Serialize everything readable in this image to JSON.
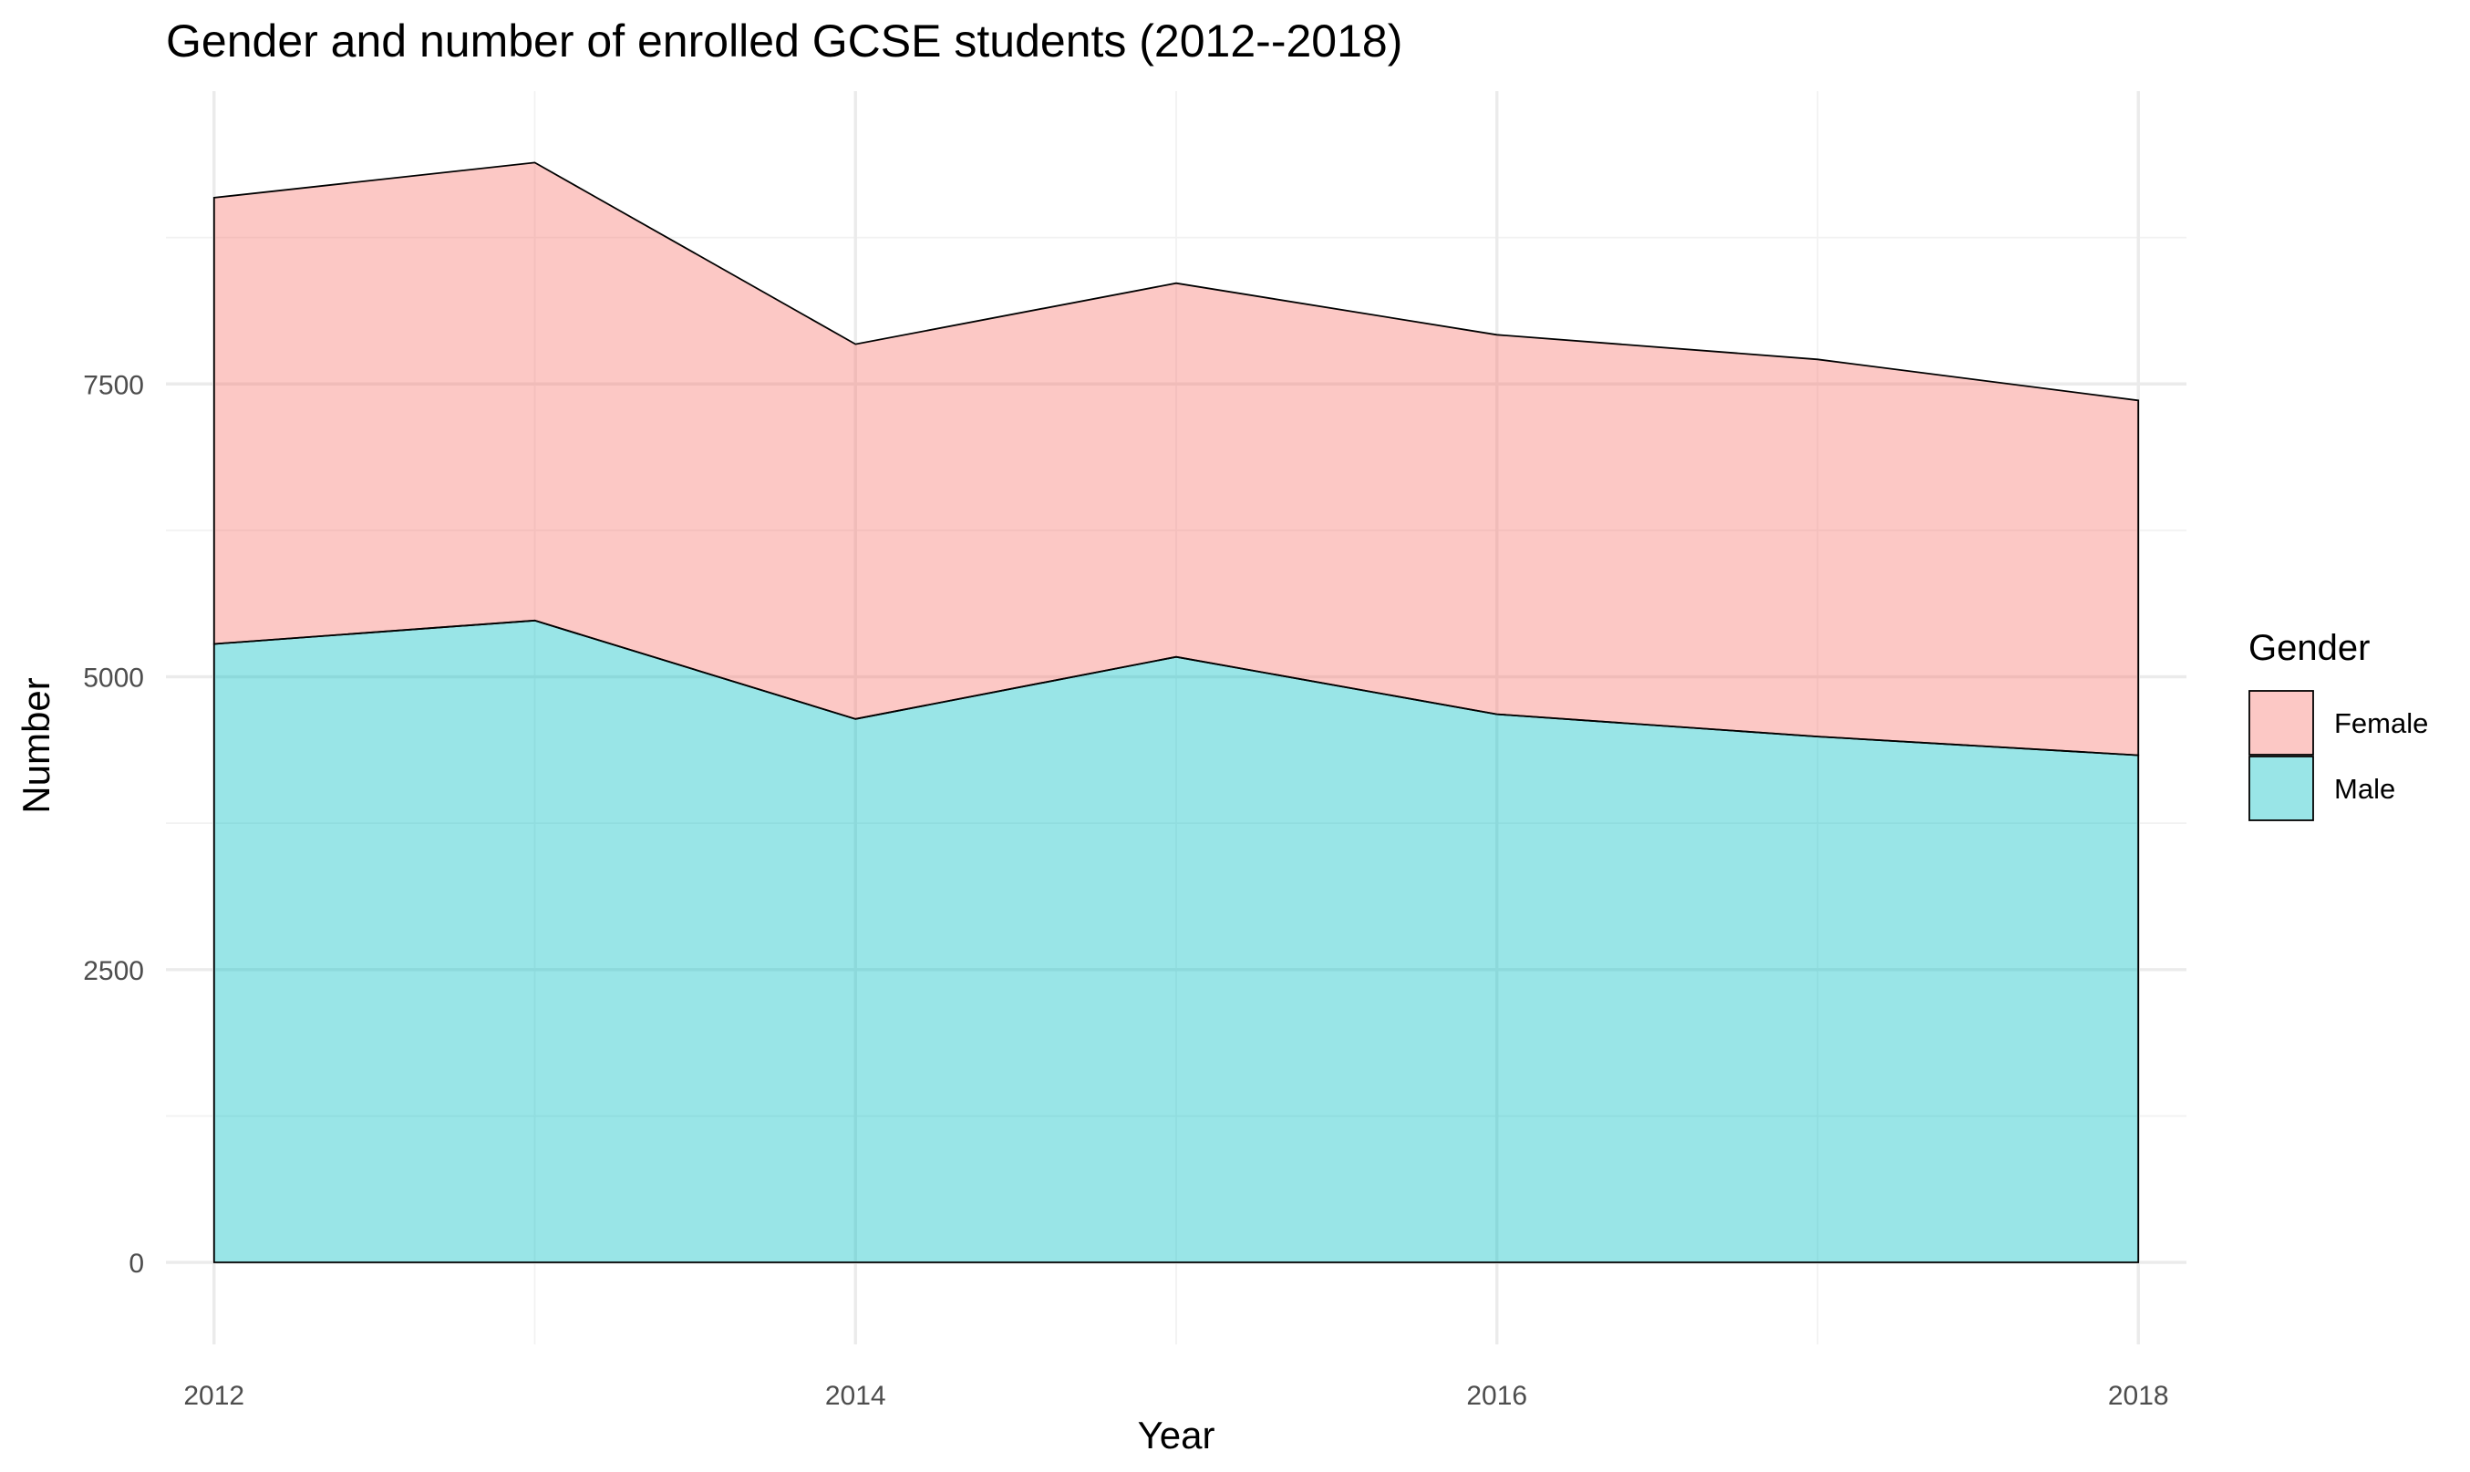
{
  "chart_data": {
    "type": "area",
    "stacked": true,
    "title": "Gender and number of enrolled GCSE students (2012--2018)",
    "xlabel": "Year",
    "ylabel": "Number",
    "x": [
      2012,
      2013,
      2014,
      2015,
      2016,
      2017,
      2018
    ],
    "xlim": [
      2011.85,
      2018.15
    ],
    "ylim": [
      -700,
      10000
    ],
    "x_ticks": [
      2012,
      2014,
      2016,
      2018
    ],
    "x_tick_labels": [
      "2012",
      "2014",
      "2016",
      "2018"
    ],
    "x_minor_ticks": [
      2013,
      2015,
      2017
    ],
    "y_ticks": [
      0,
      2500,
      5000,
      7500
    ],
    "y_tick_labels": [
      "0",
      "2500",
      "5000",
      "7500"
    ],
    "y_minor_ticks": [
      1250,
      3750,
      6250,
      8750
    ],
    "grid": true,
    "legend": {
      "title": "Gender",
      "placement": "right",
      "entries": [
        "Female",
        "Male"
      ]
    },
    "series": [
      {
        "name": "Male",
        "color": "#00BFC4",
        "values": [
          5280,
          5480,
          4640,
          5170,
          4680,
          4490,
          4330
        ]
      },
      {
        "name": "Female",
        "color": "#F8766D",
        "values": [
          3810,
          3910,
          3200,
          3190,
          3240,
          3220,
          3030
        ]
      }
    ]
  }
}
